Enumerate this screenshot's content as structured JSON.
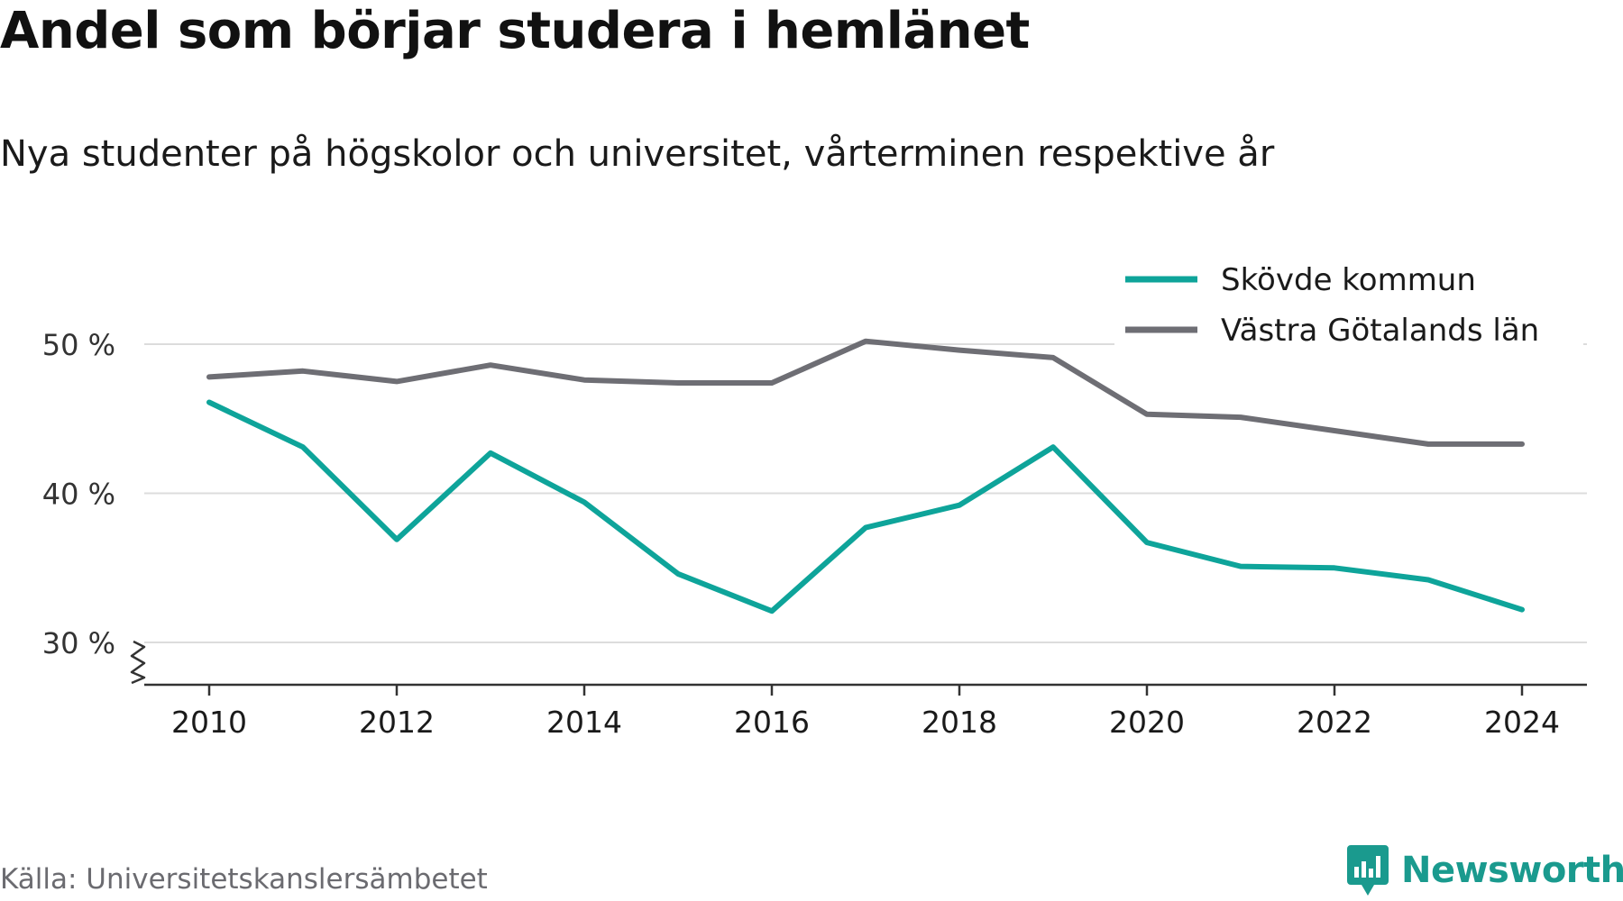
{
  "header": {
    "title": "Andel som börjar studera i hemlänet",
    "subtitle": "Nya studenter på högskolor och universitet, vårterminen respektive år"
  },
  "footer": {
    "source": "Källa: Universitetskanslersämbetet",
    "brand": "Newsworthy",
    "brand_icon": "bar-chart-speech-bubble-icon",
    "brand_color": "#1a9a8e"
  },
  "chart_data": {
    "type": "line",
    "x": [
      2010,
      2011,
      2012,
      2013,
      2014,
      2015,
      2016,
      2017,
      2018,
      2019,
      2020,
      2021,
      2022,
      2023,
      2024
    ],
    "x_tick_labels": [
      "2010",
      "2012",
      "2014",
      "2016",
      "2018",
      "2020",
      "2022",
      "2024"
    ],
    "y_ticks": [
      30,
      40,
      50
    ],
    "y_tick_labels": [
      "30 %",
      "40 %",
      "50 %"
    ],
    "ylim": [
      27.2,
      52
    ],
    "y_axis_break": true,
    "grid": true,
    "legend_position": "top-right",
    "series": [
      {
        "name": "Skövde kommun",
        "color": "#0ea49a",
        "values": [
          46.1,
          43.1,
          36.9,
          42.7,
          39.4,
          34.6,
          32.1,
          37.7,
          39.2,
          43.1,
          36.7,
          35.1,
          35.0,
          34.2,
          32.2
        ]
      },
      {
        "name": "Västra Götalands län",
        "color": "#6e6e74",
        "values": [
          47.8,
          48.2,
          47.5,
          48.6,
          47.6,
          47.4,
          47.4,
          50.2,
          49.6,
          49.1,
          45.3,
          45.1,
          44.2,
          43.3,
          43.3
        ]
      }
    ]
  }
}
